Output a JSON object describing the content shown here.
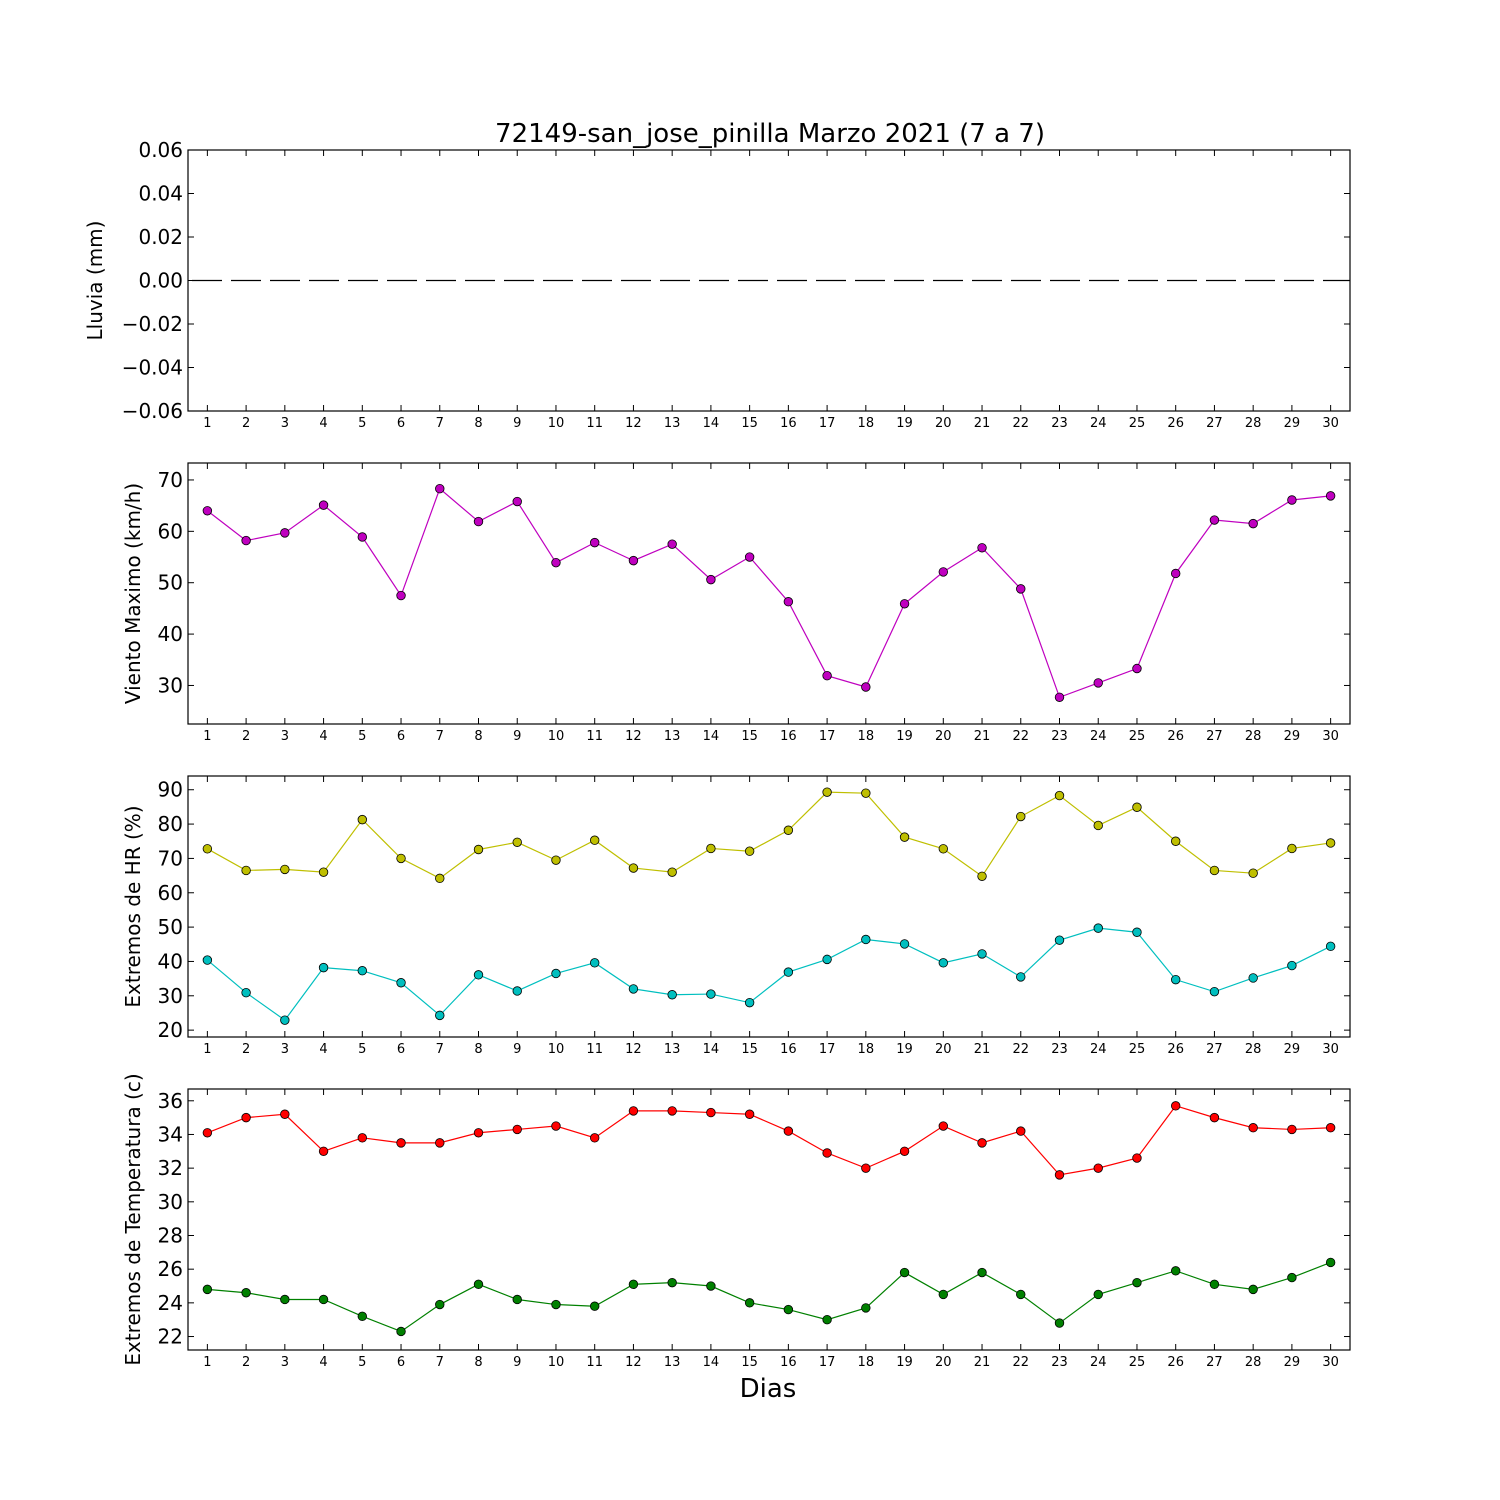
{
  "chart_data": {
    "type": "line",
    "title": "72149-san_jose_pinilla Marzo 2021  (7 a 7)",
    "xlabel": "Dias",
    "x": [
      1,
      2,
      3,
      4,
      5,
      6,
      7,
      8,
      9,
      10,
      11,
      12,
      13,
      14,
      15,
      16,
      17,
      18,
      19,
      20,
      21,
      22,
      23,
      24,
      25,
      26,
      27,
      28,
      29,
      30
    ],
    "subplots": [
      {
        "ylabel": "Lluvia (mm)",
        "ylim": [
          -0.06,
          0.06
        ],
        "yticks": [
          -0.06,
          -0.04,
          -0.02,
          0.0,
          0.02,
          0.04,
          0.06
        ],
        "ytick_labels": [
          "−0.06",
          "−0.04",
          "−0.02",
          "0.00",
          "0.02",
          "0.04",
          "0.06"
        ],
        "series": [
          {
            "color": "#000000",
            "style": "dashed",
            "markers": false,
            "values": [
              0,
              0,
              0,
              0,
              0,
              0,
              0,
              0,
              0,
              0,
              0,
              0,
              0,
              0,
              0,
              0,
              0,
              0,
              0,
              0,
              0,
              0,
              0,
              0,
              0,
              0,
              0,
              0,
              0,
              0
            ]
          }
        ]
      },
      {
        "ylabel": "Viento Maximo (km/h)",
        "ylim": [
          22.5,
          73.3
        ],
        "yticks": [
          30,
          40,
          50,
          60,
          70
        ],
        "ytick_labels": [
          "30",
          "40",
          "50",
          "60",
          "70"
        ],
        "series": [
          {
            "color": "#bf00bf",
            "style": "solid",
            "markers": true,
            "values": [
              64.0,
              58.2,
              59.7,
              65.1,
              58.9,
              47.5,
              68.3,
              61.9,
              65.8,
              53.9,
              57.8,
              54.3,
              57.5,
              50.6,
              55.0,
              46.3,
              31.9,
              29.7,
              45.9,
              52.1,
              56.8,
              48.8,
              27.7,
              30.5,
              33.3,
              51.8,
              62.2,
              61.5,
              66.1,
              66.9
            ]
          }
        ]
      },
      {
        "ylabel": "Extremos de HR (%)",
        "ylim": [
          18,
          94
        ],
        "yticks": [
          20,
          30,
          40,
          50,
          60,
          70,
          80,
          90
        ],
        "ytick_labels": [
          "20",
          "30",
          "40",
          "50",
          "60",
          "70",
          "80",
          "90"
        ],
        "series": [
          {
            "color": "#bfbf00",
            "style": "solid",
            "markers": true,
            "values": [
              72.8,
              66.5,
              66.8,
              66.0,
              81.3,
              70.0,
              64.2,
              72.6,
              74.7,
              69.5,
              75.3,
              67.2,
              66.0,
              72.9,
              72.1,
              78.2,
              89.3,
              89.0,
              76.2,
              72.8,
              64.8,
              82.2,
              88.3,
              79.6,
              84.9,
              75.0,
              66.5,
              65.7,
              72.9,
              74.5
            ]
          },
          {
            "color": "#00bfbf",
            "style": "solid",
            "markers": true,
            "values": [
              40.4,
              30.9,
              22.9,
              38.2,
              37.3,
              33.8,
              24.3,
              36.1,
              31.4,
              36.5,
              39.6,
              32.0,
              30.3,
              30.5,
              28.0,
              36.9,
              40.6,
              46.4,
              45.1,
              39.6,
              42.2,
              35.5,
              46.2,
              49.7,
              48.5,
              34.7,
              31.2,
              35.2,
              38.8,
              44.4
            ]
          }
        ]
      },
      {
        "ylabel": "Extremos de Temperatura (c)",
        "ylim": [
          21.2,
          36.7
        ],
        "yticks": [
          22,
          24,
          26,
          28,
          30,
          32,
          34,
          36
        ],
        "ytick_labels": [
          "22",
          "24",
          "26",
          "28",
          "30",
          "32",
          "34",
          "36"
        ],
        "series": [
          {
            "color": "#ff0000",
            "style": "solid",
            "markers": true,
            "values": [
              34.1,
              35.0,
              35.2,
              33.0,
              33.8,
              33.5,
              33.5,
              34.1,
              34.3,
              34.5,
              33.8,
              35.4,
              35.4,
              35.3,
              35.2,
              34.2,
              32.9,
              32.0,
              33.0,
              34.5,
              33.5,
              34.2,
              31.6,
              32.0,
              32.6,
              35.7,
              35.0,
              34.4,
              34.3,
              34.4
            ]
          },
          {
            "color": "#008000",
            "style": "solid",
            "markers": true,
            "values": [
              24.8,
              24.6,
              24.2,
              24.2,
              23.2,
              22.3,
              23.9,
              25.1,
              24.2,
              23.9,
              23.8,
              25.1,
              25.2,
              25.0,
              24.0,
              23.6,
              23.0,
              23.7,
              25.8,
              24.5,
              25.8,
              24.5,
              22.8,
              24.5,
              25.2,
              25.9,
              25.1,
              24.8,
              25.5,
              26.4
            ]
          }
        ]
      }
    ]
  }
}
